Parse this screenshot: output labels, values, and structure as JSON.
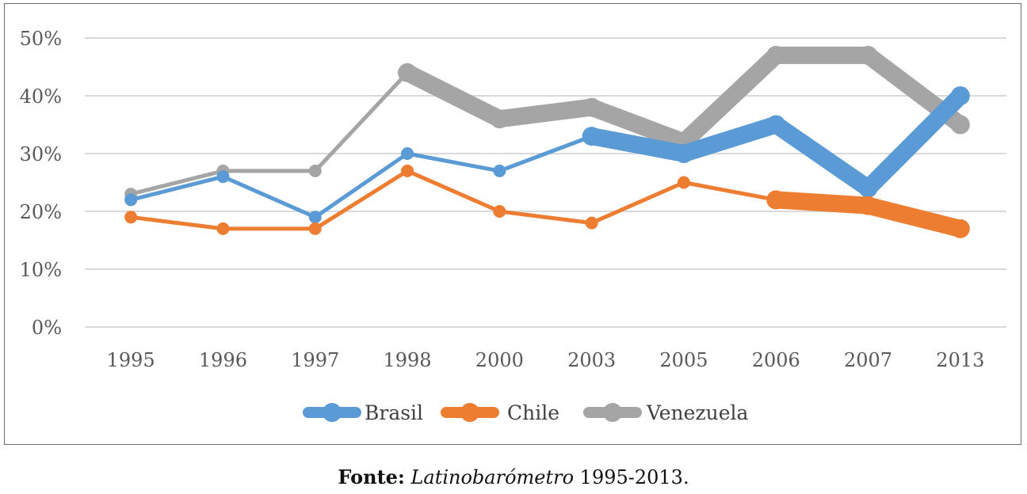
{
  "chart_data": {
    "type": "line",
    "title": "",
    "xlabel": "",
    "ylabel": "",
    "categories": [
      "1995",
      "1996",
      "1997",
      "1998",
      "2000",
      "2003",
      "2005",
      "2006",
      "2007",
      "2013"
    ],
    "ylim": [
      0,
      50
    ],
    "yticks": [
      0,
      10,
      20,
      30,
      40,
      50
    ],
    "ytick_labels": [
      "0%",
      "10%",
      "20%",
      "30%",
      "40%",
      "50%"
    ],
    "grid": true,
    "legend_position": "bottom",
    "series": [
      {
        "name": "Brasil",
        "color": "#5B9BD5",
        "values": [
          22,
          26,
          19,
          30,
          27,
          33,
          30,
          35,
          24,
          40
        ],
        "weights": [
          1,
          1,
          1,
          1,
          1,
          3,
          3,
          3,
          3,
          3
        ]
      },
      {
        "name": "Chile",
        "color": "#ED7D31",
        "values": [
          19,
          17,
          17,
          27,
          20,
          18,
          25,
          22,
          21,
          17
        ],
        "weights": [
          1,
          1,
          1,
          1,
          1,
          1,
          1,
          3,
          3,
          3
        ]
      },
      {
        "name": "Venezuela",
        "color": "#A5A5A5",
        "values": [
          23,
          27,
          27,
          44,
          36,
          38,
          32,
          47,
          47,
          35
        ],
        "weights": [
          1,
          1,
          1,
          3,
          3,
          3,
          3,
          3,
          3,
          3
        ]
      }
    ]
  },
  "caption": {
    "bold": "Fonte:",
    "italic": "Latinobarómetro",
    "rest": " 1995-2013."
  }
}
